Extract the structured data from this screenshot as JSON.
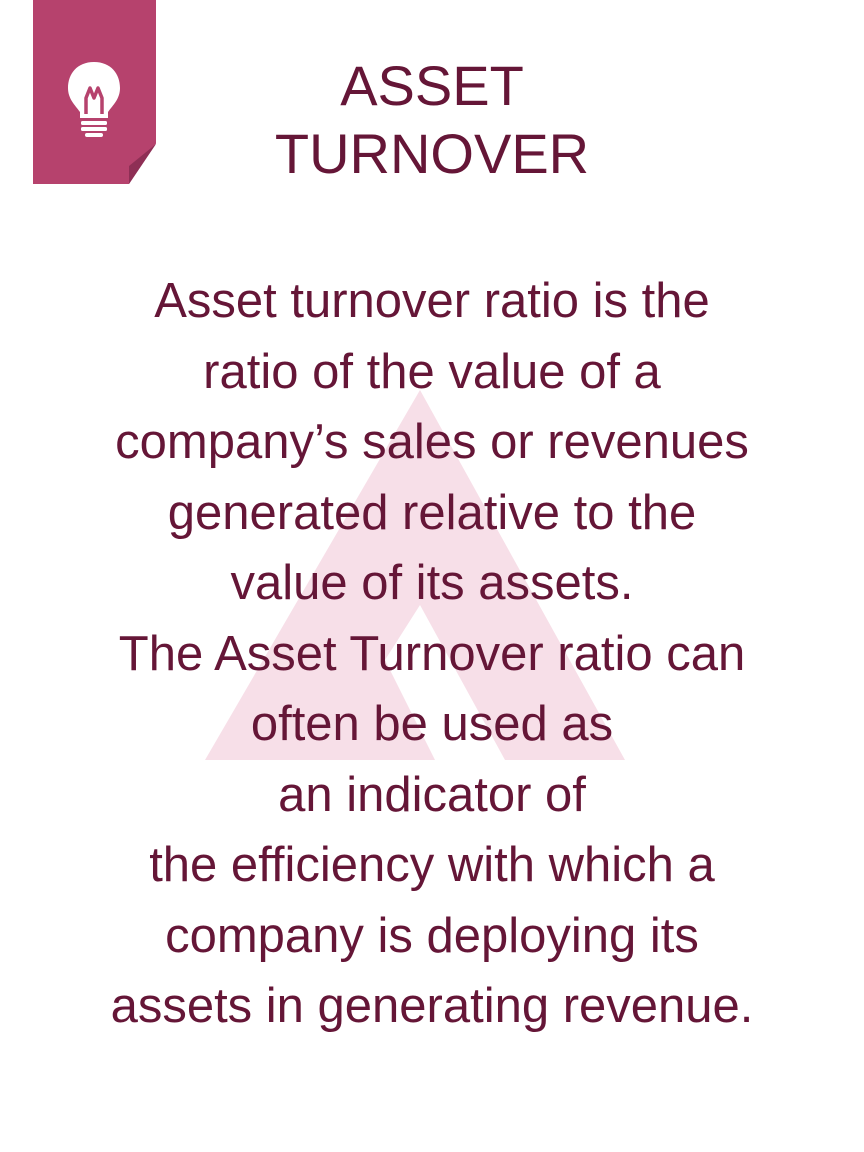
{
  "colors": {
    "accent": "#b6426d",
    "text": "#651637",
    "watermark": "#f7dfe8"
  },
  "header": {
    "icon": "lightbulb-icon",
    "title_line1": "ASSET",
    "title_line2": "TURNOVER"
  },
  "body": {
    "lines": [
      "Asset turnover ratio is the",
      "ratio of the value of a",
      "company’s sales or revenues",
      " generated relative to the",
      "value of its assets.",
      "The Asset Turnover ratio can",
      "often be used as",
      " an indicator of",
      "the efficiency with which a",
      "company is deploying its",
      "assets in generating revenue."
    ]
  }
}
